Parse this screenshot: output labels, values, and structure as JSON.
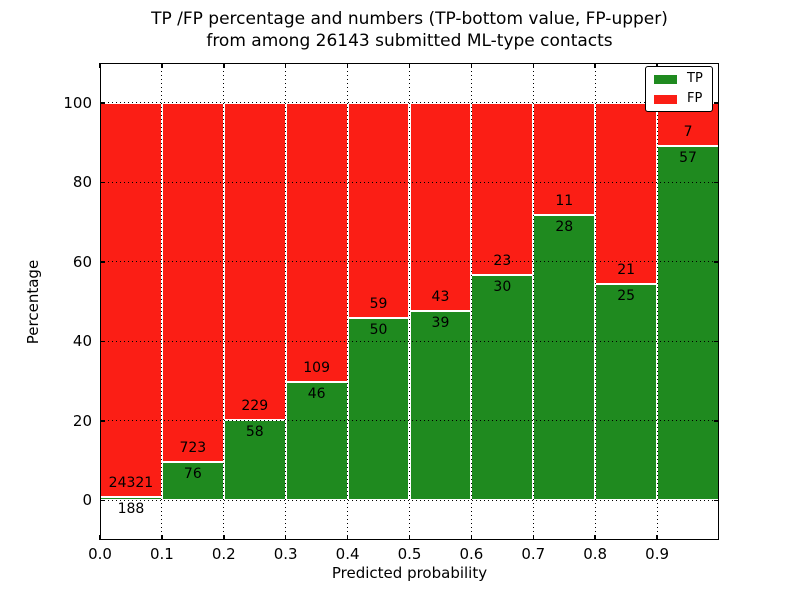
{
  "chart_data": {
    "type": "bar",
    "stacked": true,
    "title_line1": "TP /FP percentage and numbers (TP-bottom value, FP-upper)",
    "title_line2": "from among 26143 submitted ML-type contacts",
    "xlabel": "Predicted probability",
    "ylabel": "Percentage",
    "xlim": [
      0,
      1
    ],
    "ylim": [
      -10,
      110
    ],
    "bar_width": 0.1,
    "x_starts": [
      0.0,
      0.1,
      0.2,
      0.3,
      0.4,
      0.5,
      0.6,
      0.7,
      0.8,
      0.9
    ],
    "xtick_labels": [
      "0.0",
      "0.1",
      "0.2",
      "0.3",
      "0.4",
      "0.5",
      "0.6",
      "0.7",
      "0.8",
      "0.9"
    ],
    "xtick_values": [
      0.0,
      0.1,
      0.2,
      0.3,
      0.4,
      0.5,
      0.6,
      0.7,
      0.8,
      0.9
    ],
    "ytick_labels": [
      "0",
      "20",
      "40",
      "60",
      "80",
      "100"
    ],
    "ytick_values": [
      0,
      20,
      40,
      60,
      80,
      100
    ],
    "grid": {
      "style": "dotted",
      "color": "#000000",
      "on": true
    },
    "series": [
      {
        "name": "TP",
        "color": "#1f8a1f",
        "counts": [
          188,
          76,
          58,
          46,
          50,
          39,
          30,
          28,
          25,
          57
        ]
      },
      {
        "name": "FP",
        "color": "#fb1e15",
        "counts": [
          24321,
          723,
          229,
          109,
          59,
          43,
          23,
          11,
          21,
          7
        ]
      }
    ],
    "tp_percent": [
      0.77,
      9.51,
      20.21,
      29.68,
      45.87,
      47.56,
      56.6,
      71.79,
      54.35,
      89.06
    ],
    "legend": {
      "position": "upper right",
      "items": [
        {
          "label": "TP",
          "color": "#1f8a1f"
        },
        {
          "label": "FP",
          "color": "#fb1e15"
        }
      ]
    }
  }
}
